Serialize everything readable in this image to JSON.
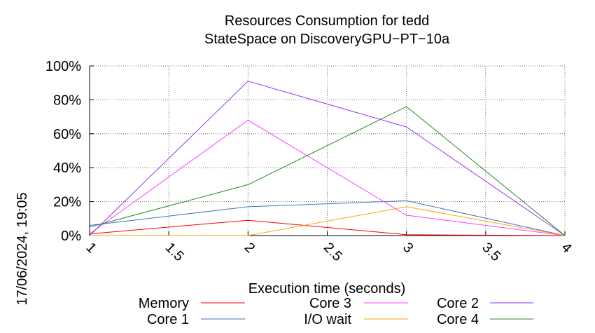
{
  "chart_data": {
    "type": "line",
    "title_line1": "Resources Consumption for tedd",
    "title_line2": "StateSpace on DiscoveryGPU−PT−10a",
    "xlabel": "Execution time (seconds)",
    "ylabel": "",
    "timestamp": "17/06/2024, 19:05",
    "xlim": [
      1,
      4
    ],
    "ylim": [
      0,
      100
    ],
    "x_ticks": [
      {
        "value": 1,
        "label": "1"
      },
      {
        "value": 1.5,
        "label": "1.5"
      },
      {
        "value": 2,
        "label": "2"
      },
      {
        "value": 2.5,
        "label": "2.5"
      },
      {
        "value": 3,
        "label": "3"
      },
      {
        "value": 3.5,
        "label": "3.5"
      },
      {
        "value": 4,
        "label": "4"
      }
    ],
    "y_ticks": [
      {
        "value": 0,
        "label": "0%"
      },
      {
        "value": 20,
        "label": "20%"
      },
      {
        "value": 40,
        "label": "40%"
      },
      {
        "value": 60,
        "label": "60%"
      },
      {
        "value": 80,
        "label": "80%"
      },
      {
        "value": 100,
        "label": "100%"
      }
    ],
    "grid": true,
    "legend_position": "bottom",
    "x": [
      1,
      2,
      3,
      4
    ],
    "series": [
      {
        "name": "Memory",
        "color": "#ff0000",
        "values": [
          1,
          9,
          0.5,
          0
        ]
      },
      {
        "name": "Core 1",
        "color": "#4472c4",
        "values": [
          6,
          17,
          20.5,
          0
        ]
      },
      {
        "name": "Core 3",
        "color": "#ff40ff",
        "values": [
          1,
          68,
          12,
          0
        ]
      },
      {
        "name": "I/O wait",
        "color": "#ffa500",
        "values": [
          0,
          0,
          17,
          0
        ]
      },
      {
        "name": "Core 2",
        "color": "#9933ee",
        "values": [
          0,
          91,
          64,
          0
        ]
      },
      {
        "name": "Core 4",
        "color": "#228b22",
        "values": [
          5,
          30,
          76,
          0
        ]
      }
    ]
  }
}
